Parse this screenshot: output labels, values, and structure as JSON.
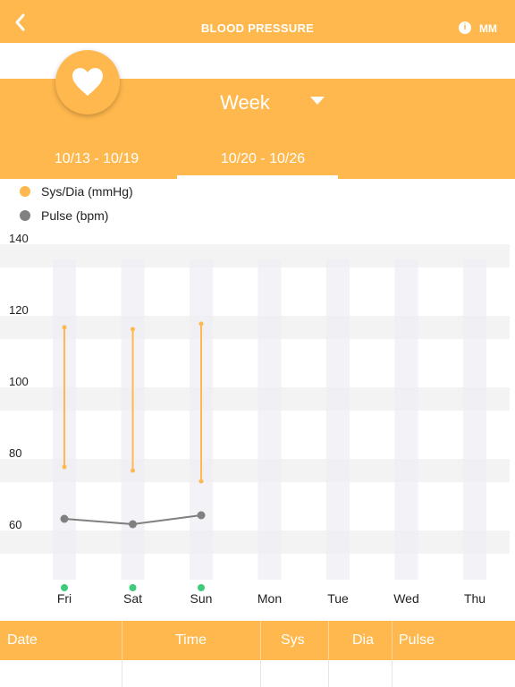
{
  "header": {
    "title": "BLOOD PRESSURE",
    "info_icon": "info-icon",
    "info_glyph": "i",
    "unit_label": "MM",
    "back_icon": "chevron-left-icon"
  },
  "selector": {
    "heart_icon": "heart-icon",
    "period_label": "Week",
    "dropdown_icon": "caret-down-icon"
  },
  "tabs": [
    {
      "label": "10/13 - 10/19",
      "selected": false
    },
    {
      "label": "10/20 - 10/26",
      "selected": true
    }
  ],
  "legend": [
    {
      "label": "Sys/Dia (mmHg)",
      "color": "#ffb84d"
    },
    {
      "label": "Pulse (bpm)",
      "color": "#808080"
    }
  ],
  "chart_data": {
    "type": "line",
    "categories": [
      "Fri",
      "Sat",
      "Sun",
      "Mon",
      "Tue",
      "Wed",
      "Thu"
    ],
    "y_ticks": [
      "140",
      "120",
      "100",
      "80",
      "60"
    ],
    "ylim": [
      50,
      140
    ],
    "series": [
      {
        "name": "Sys/Dia (mmHg)",
        "kind": "range",
        "color": "#ffb84d",
        "high": [
          120,
          119.5,
          121,
          null,
          null,
          null,
          null
        ],
        "low": [
          81,
          80,
          77,
          null,
          null,
          null,
          null
        ]
      },
      {
        "name": "Pulse (bpm)",
        "kind": "line",
        "color": "#808080",
        "values": [
          66.5,
          65,
          67.5,
          null,
          null,
          null,
          null
        ]
      }
    ],
    "has_record": [
      true,
      true,
      true,
      false,
      false,
      false,
      false
    ],
    "record_marker_color": "#3ecb7b",
    "grid": true
  },
  "table": {
    "columns": [
      "Date",
      "Time",
      "Sys",
      "Dia",
      "Pulse"
    ]
  }
}
